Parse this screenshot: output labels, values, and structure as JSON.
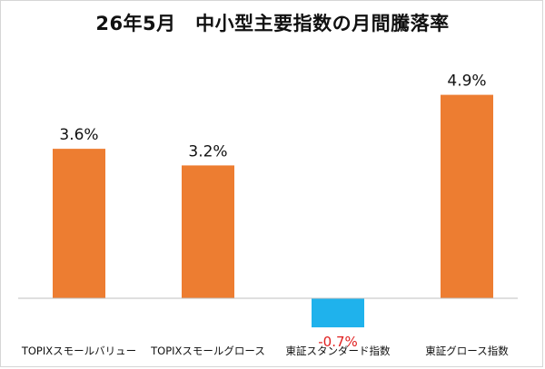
{
  "chart_data": {
    "type": "bar",
    "title": "26年5月　中小型主要指数の月間騰落率",
    "categories": [
      "TOPIXスモールバリュー",
      "TOPIXスモールグロース",
      "東証スタンダード指数",
      "東証グロース指数"
    ],
    "values": [
      3.6,
      3.2,
      -0.7,
      4.9
    ],
    "value_labels": [
      "3.6%",
      "3.2%",
      "-0.7%",
      "4.9%"
    ],
    "unit": "%",
    "ylim": [
      -1.2,
      5.5
    ],
    "grid": false,
    "legend": "none",
    "colors": {
      "positive": "#ED7D31",
      "negative": "#1FB2EC",
      "positive_label": "#111111",
      "negative_label": "#E02020",
      "axis": "#bfbfbf"
    }
  }
}
